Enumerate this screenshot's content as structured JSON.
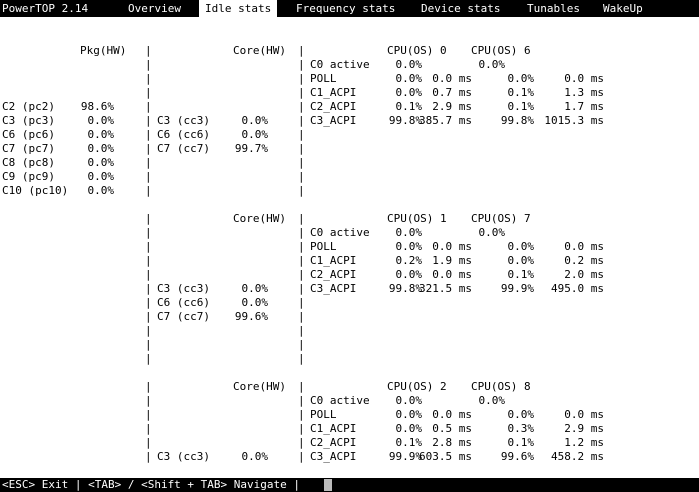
{
  "app": {
    "title": "PowerTOP 2.14"
  },
  "tabs": [
    {
      "label": "Overview",
      "active": false
    },
    {
      "label": "Idle stats",
      "active": true
    },
    {
      "label": "Frequency stats",
      "active": false
    },
    {
      "label": "Device stats",
      "active": false
    },
    {
      "label": "Tunables",
      "active": false
    },
    {
      "label": "WakeUp",
      "active": false
    }
  ],
  "package": {
    "header": "Pkg(HW)",
    "rows": [
      {
        "state": "C2 (pc2)",
        "value": "98.6%"
      },
      {
        "state": "C3 (pc3)",
        "value": "0.0%"
      },
      {
        "state": "C6 (pc6)",
        "value": "0.0%"
      },
      {
        "state": "C7 (pc7)",
        "value": "0.0%"
      },
      {
        "state": "C8 (pc8)",
        "value": "0.0%"
      },
      {
        "state": "C9 (pc9)",
        "value": "0.0%"
      },
      {
        "state": "C10 (pc10)",
        "value": "0.0%"
      }
    ]
  },
  "cores": [
    {
      "header": "Core(HW)",
      "states": [
        {
          "state": "C3 (cc3)",
          "value": "0.0%"
        },
        {
          "state": "C6 (cc6)",
          "value": "0.0%"
        },
        {
          "state": "C7 (cc7)",
          "value": "99.7%"
        }
      ],
      "cpu_a": "CPU(OS) 0",
      "cpu_b": "CPU(OS) 6",
      "c0": {
        "a": "0.0%",
        "b": "0.0%"
      },
      "rows": [
        {
          "name": "POLL",
          "a_pct": "0.0%",
          "a_time": "0.0 ms",
          "b_pct": "0.0%",
          "b_time": "0.0 ms"
        },
        {
          "name": "C1_ACPI",
          "a_pct": "0.0%",
          "a_time": "0.7 ms",
          "b_pct": "0.1%",
          "b_time": "1.3 ms"
        },
        {
          "name": "C2_ACPI",
          "a_pct": "0.1%",
          "a_time": "2.9 ms",
          "b_pct": "0.1%",
          "b_time": "1.7 ms"
        },
        {
          "name": "C3_ACPI",
          "a_pct": "99.8%",
          "a_time": "385.7 ms",
          "b_pct": "99.8%",
          "b_time": "1015.3 ms"
        }
      ]
    },
    {
      "header": "Core(HW)",
      "states": [
        {
          "state": "C3 (cc3)",
          "value": "0.0%"
        },
        {
          "state": "C6 (cc6)",
          "value": "0.0%"
        },
        {
          "state": "C7 (cc7)",
          "value": "99.6%"
        }
      ],
      "cpu_a": "CPU(OS) 1",
      "cpu_b": "CPU(OS) 7",
      "c0": {
        "a": "0.0%",
        "b": "0.0%"
      },
      "rows": [
        {
          "name": "POLL",
          "a_pct": "0.0%",
          "a_time": "0.0 ms",
          "b_pct": "0.0%",
          "b_time": "0.0 ms"
        },
        {
          "name": "C1_ACPI",
          "a_pct": "0.2%",
          "a_time": "1.9 ms",
          "b_pct": "0.0%",
          "b_time": "0.2 ms"
        },
        {
          "name": "C2_ACPI",
          "a_pct": "0.0%",
          "a_time": "0.0 ms",
          "b_pct": "0.1%",
          "b_time": "2.0 ms"
        },
        {
          "name": "C3_ACPI",
          "a_pct": "99.8%",
          "a_time": "321.5 ms",
          "b_pct": "99.9%",
          "b_time": "495.0 ms"
        }
      ]
    },
    {
      "header": "Core(HW)",
      "states": [
        {
          "state": "C3 (cc3)",
          "value": "0.0%"
        }
      ],
      "cpu_a": "CPU(OS) 2",
      "cpu_b": "CPU(OS) 8",
      "c0": {
        "a": "0.0%",
        "b": "0.0%"
      },
      "rows": [
        {
          "name": "POLL",
          "a_pct": "0.0%",
          "a_time": "0.0 ms",
          "b_pct": "0.0%",
          "b_time": "0.0 ms"
        },
        {
          "name": "C1_ACPI",
          "a_pct": "0.0%",
          "a_time": "0.5 ms",
          "b_pct": "0.3%",
          "b_time": "2.9 ms"
        },
        {
          "name": "C2_ACPI",
          "a_pct": "0.1%",
          "a_time": "2.8 ms",
          "b_pct": "0.1%",
          "b_time": "1.2 ms"
        },
        {
          "name": "C3_ACPI",
          "a_pct": "99.9%",
          "a_time": "603.5 ms",
          "b_pct": "99.6%",
          "b_time": "458.2 ms"
        }
      ]
    }
  ],
  "labels": {
    "c0_active": "C0 active",
    "separator": "|"
  },
  "footer": {
    "text": "<ESC> Exit | <TAB> / <Shift + TAB> Navigate |"
  }
}
